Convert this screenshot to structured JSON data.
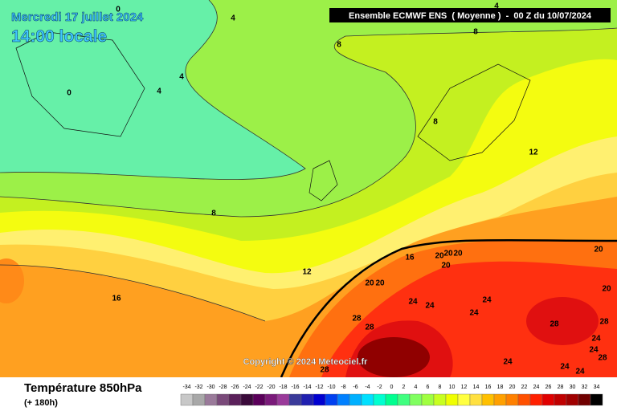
{
  "header": {
    "title": "Mercredi 17 juillet 2024",
    "time": "14:00 locale",
    "model": "Ensemble ECMWF ENS  ( Moyenne )  -  00 Z du 10/07/2024"
  },
  "copyright": "Copyright © 2024 Meteociel.fr",
  "footer": {
    "variable": "Température 850hPa",
    "lead": "(+ 180h)"
  },
  "contour_labels": [
    0,
    4,
    4,
    4,
    0,
    8,
    8,
    4,
    8,
    12,
    8,
    12,
    16,
    20,
    20,
    20,
    20,
    20,
    20,
    16,
    24,
    24,
    24,
    24,
    28,
    28,
    20,
    20,
    28,
    28,
    24,
    24,
    28,
    24,
    24,
    24,
    28
  ],
  "colorbar": {
    "labels": [
      -34,
      -32,
      -30,
      -28,
      -26,
      -24,
      -22,
      -20,
      -18,
      -16,
      -14,
      -12,
      -10,
      -8,
      -6,
      -4,
      -2,
      0,
      2,
      4,
      6,
      8,
      10,
      12,
      14,
      16,
      18,
      20,
      22,
      24,
      26,
      28,
      30,
      32,
      34
    ],
    "colors": [
      "#c8c8c8",
      "#a8a8a8",
      "#9a7a9a",
      "#7a4a7a",
      "#5a205a",
      "#3a0a3a",
      "#5a005a",
      "#7a1a7a",
      "#9a3a9a",
      "#3a3a9a",
      "#2020b0",
      "#0000d0",
      "#0040f0",
      "#0080ff",
      "#00b0ff",
      "#00e0ff",
      "#00ffd0",
      "#00ff90",
      "#40ff80",
      "#80ff60",
      "#a0ff40",
      "#c8ff20",
      "#f0ff00",
      "#ffff40",
      "#ffe040",
      "#ffc000",
      "#ffa000",
      "#ff8000",
      "#ff5000",
      "#ff2000",
      "#e00000",
      "#c00000",
      "#a00000",
      "#700000",
      "#000000"
    ]
  }
}
